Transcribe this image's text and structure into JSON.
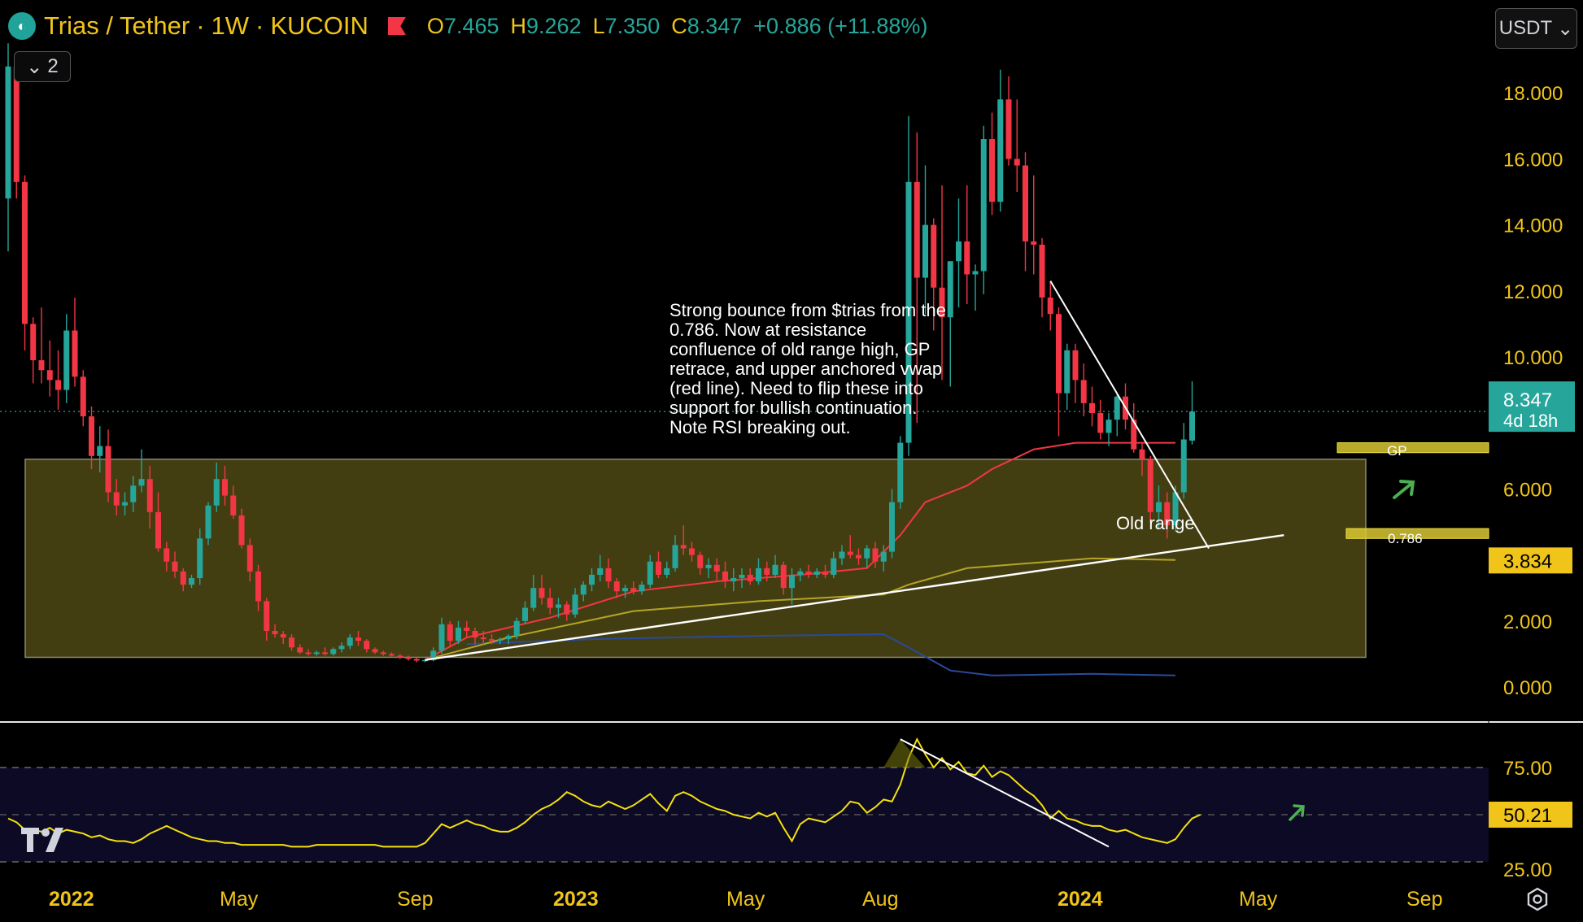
{
  "header": {
    "pair": "Trias / Tether",
    "sep1": "·",
    "interval": "1W",
    "sep2": "·",
    "exchange": "KUCOIN",
    "o_label": "O",
    "o_value": "7.465",
    "h_label": "H",
    "h_value": "9.262",
    "l_label": "L",
    "l_value": "7.350",
    "c_label": "C",
    "c_value": "8.347",
    "change": "+0.886 (+11.88%)"
  },
  "indicator_toggle": "2",
  "currency_select": "USDT",
  "annotation": "Strong bounce from $trias from the\n0.786. Now at resistance\nconfluence of old range high, GP\nretrace, and upper anchored vwap\n(red line). Need to flip these into\nsupport for bullish continuation.\nNote RSI breaking out.",
  "colors": {
    "up": "#26a69a",
    "down": "#f23645",
    "accent": "#f0c419",
    "range_fill": "#4a4514",
    "vwap_upper": "#f23645",
    "vwap_mid": "#b5a526",
    "vwap_lower": "#2a4a9a",
    "rsi_line": "#f5e10d",
    "trendline": "#ffffff",
    "arrow": "#4caf50"
  },
  "chart_data": [
    {
      "type": "candlestick",
      "title": "Trias / Tether · 1W · KUCOIN",
      "ylim": [
        0,
        19.5
      ],
      "y_ticks": [
        "18.000",
        "16.000",
        "14.000",
        "12.000",
        "10.000",
        "8.347",
        "6.000",
        "3.834",
        "2.000",
        "0.000"
      ],
      "price_tag": {
        "value": "8.347",
        "countdown": "4d 18h"
      },
      "level_tag": "3.834",
      "x_ticks": [
        "2022",
        "May",
        "Sep",
        "2023",
        "May",
        "Aug",
        "2024",
        "May",
        "Sep"
      ],
      "annotations": {
        "old_range": "Old range",
        "gp": "GP",
        "fib": "0.786"
      },
      "ohlc": [
        [
          14.8,
          19.5,
          13.2,
          18.8
        ],
        [
          18.8,
          18.9,
          14.8,
          15.3
        ],
        [
          15.3,
          15.5,
          10.2,
          11.0
        ],
        [
          11.0,
          11.2,
          9.2,
          9.9
        ],
        [
          9.9,
          11.5,
          9.2,
          9.6
        ],
        [
          9.6,
          10.5,
          8.8,
          9.3
        ],
        [
          9.3,
          10.2,
          8.4,
          9.0
        ],
        [
          9.0,
          11.3,
          8.6,
          10.8
        ],
        [
          10.8,
          11.8,
          9.1,
          9.4
        ],
        [
          9.4,
          9.6,
          7.9,
          8.2
        ],
        [
          8.2,
          8.5,
          6.6,
          7.0
        ],
        [
          7.0,
          7.9,
          6.5,
          7.3
        ],
        [
          7.3,
          7.8,
          5.6,
          5.9
        ],
        [
          5.9,
          6.3,
          5.2,
          5.5
        ],
        [
          5.5,
          5.9,
          5.2,
          5.6
        ],
        [
          5.6,
          6.4,
          5.3,
          6.1
        ],
        [
          6.1,
          7.2,
          5.9,
          6.3
        ],
        [
          6.3,
          6.7,
          4.8,
          5.3
        ],
        [
          5.3,
          5.9,
          4.1,
          4.2
        ],
        [
          4.2,
          4.4,
          3.5,
          3.8
        ],
        [
          3.8,
          4.1,
          3.3,
          3.5
        ],
        [
          3.5,
          3.6,
          2.9,
          3.1
        ],
        [
          3.1,
          3.4,
          3.0,
          3.3
        ],
        [
          3.3,
          4.8,
          3.1,
          4.5
        ],
        [
          4.5,
          5.6,
          4.3,
          5.5
        ],
        [
          5.5,
          6.8,
          5.3,
          6.3
        ],
        [
          6.3,
          6.7,
          5.5,
          5.8
        ],
        [
          5.8,
          6.1,
          5.1,
          5.2
        ],
        [
          5.2,
          5.4,
          4.2,
          4.3
        ],
        [
          4.3,
          4.5,
          3.2,
          3.5
        ],
        [
          3.5,
          3.7,
          2.3,
          2.6
        ],
        [
          2.6,
          2.7,
          1.4,
          1.7
        ],
        [
          1.7,
          1.9,
          1.5,
          1.6
        ],
        [
          1.6,
          1.7,
          1.3,
          1.5
        ],
        [
          1.5,
          1.6,
          1.1,
          1.2
        ],
        [
          1.2,
          1.3,
          1.0,
          1.05
        ],
        [
          1.05,
          1.15,
          0.95,
          1.0
        ],
        [
          1.0,
          1.1,
          0.95,
          1.05
        ],
        [
          1.05,
          1.2,
          0.95,
          1.0
        ],
        [
          1.0,
          1.2,
          0.95,
          1.15
        ],
        [
          1.15,
          1.35,
          1.05,
          1.25
        ],
        [
          1.25,
          1.6,
          1.15,
          1.5
        ],
        [
          1.5,
          1.7,
          1.25,
          1.4
        ],
        [
          1.4,
          1.45,
          1.05,
          1.15
        ],
        [
          1.15,
          1.2,
          1.0,
          1.05
        ],
        [
          1.05,
          1.1,
          0.95,
          1.0
        ],
        [
          1.0,
          1.05,
          0.9,
          0.95
        ],
        [
          0.95,
          1.0,
          0.85,
          0.9
        ],
        [
          0.9,
          0.95,
          0.8,
          0.85
        ],
        [
          0.85,
          0.9,
          0.75,
          0.8
        ],
        [
          0.8,
          0.85,
          0.75,
          0.82
        ],
        [
          0.82,
          1.2,
          0.78,
          1.1
        ],
        [
          1.1,
          2.1,
          1.0,
          1.9
        ],
        [
          1.9,
          2.0,
          1.2,
          1.4
        ],
        [
          1.4,
          2.0,
          1.3,
          1.8
        ],
        [
          1.8,
          2.0,
          1.5,
          1.7
        ],
        [
          1.7,
          1.8,
          1.3,
          1.5
        ],
        [
          1.5,
          1.7,
          1.3,
          1.45
        ],
        [
          1.45,
          1.6,
          1.3,
          1.4
        ],
        [
          1.4,
          1.5,
          1.3,
          1.45
        ],
        [
          1.45,
          1.6,
          1.3,
          1.55
        ],
        [
          1.55,
          2.1,
          1.45,
          2.0
        ],
        [
          2.0,
          2.6,
          1.9,
          2.4
        ],
        [
          2.4,
          3.4,
          2.3,
          3.0
        ],
        [
          3.0,
          3.4,
          2.5,
          2.7
        ],
        [
          2.7,
          3.0,
          2.2,
          2.4
        ],
        [
          2.4,
          2.7,
          2.1,
          2.5
        ],
        [
          2.5,
          2.6,
          2.0,
          2.2
        ],
        [
          2.2,
          3.0,
          2.1,
          2.8
        ],
        [
          2.8,
          3.2,
          2.6,
          3.1
        ],
        [
          3.1,
          3.6,
          2.9,
          3.4
        ],
        [
          3.4,
          4.0,
          3.2,
          3.6
        ],
        [
          3.6,
          3.9,
          3.0,
          3.2
        ],
        [
          3.2,
          3.3,
          2.7,
          2.9
        ],
        [
          2.9,
          3.1,
          2.7,
          3.0
        ],
        [
          3.0,
          3.2,
          2.8,
          2.9
        ],
        [
          2.9,
          3.2,
          2.8,
          3.1
        ],
        [
          3.1,
          4.0,
          3.0,
          3.8
        ],
        [
          3.8,
          4.1,
          3.3,
          3.4
        ],
        [
          3.4,
          3.8,
          3.3,
          3.6
        ],
        [
          3.6,
          4.6,
          3.5,
          4.3
        ],
        [
          4.3,
          4.9,
          4.0,
          4.2
        ],
        [
          4.2,
          4.4,
          3.8,
          4.0
        ],
        [
          4.0,
          4.1,
          3.4,
          3.6
        ],
        [
          3.6,
          3.9,
          3.3,
          3.7
        ],
        [
          3.7,
          3.9,
          3.2,
          3.5
        ],
        [
          3.5,
          3.8,
          3.0,
          3.2
        ],
        [
          3.2,
          3.6,
          2.9,
          3.3
        ],
        [
          3.3,
          3.6,
          3.0,
          3.4
        ],
        [
          3.4,
          3.6,
          3.1,
          3.2
        ],
        [
          3.2,
          3.9,
          3.1,
          3.6
        ],
        [
          3.6,
          3.8,
          3.2,
          3.4
        ],
        [
          3.4,
          4.0,
          3.3,
          3.7
        ],
        [
          3.7,
          3.8,
          2.8,
          3.0
        ],
        [
          3.0,
          3.6,
          2.5,
          3.4
        ],
        [
          3.4,
          3.6,
          3.2,
          3.5
        ],
        [
          3.5,
          3.7,
          3.3,
          3.4
        ],
        [
          3.4,
          3.6,
          3.3,
          3.5
        ],
        [
          3.5,
          3.7,
          3.3,
          3.4
        ],
        [
          3.4,
          4.1,
          3.3,
          3.9
        ],
        [
          3.9,
          4.3,
          3.7,
          4.1
        ],
        [
          4.1,
          4.6,
          3.9,
          4.0
        ],
        [
          4.0,
          4.2,
          3.7,
          3.9
        ],
        [
          3.9,
          4.3,
          3.6,
          4.2
        ],
        [
          4.2,
          4.4,
          3.6,
          3.8
        ],
        [
          3.8,
          4.3,
          3.5,
          4.1
        ],
        [
          4.1,
          6.0,
          3.9,
          5.6
        ],
        [
          5.6,
          7.6,
          5.4,
          7.4
        ],
        [
          7.4,
          17.3,
          7.0,
          15.3
        ],
        [
          15.3,
          16.8,
          8.0,
          12.4
        ],
        [
          12.4,
          15.8,
          11.3,
          14.0
        ],
        [
          14.0,
          14.2,
          10.8,
          12.1
        ],
        [
          12.1,
          15.2,
          9.3,
          11.2
        ],
        [
          11.2,
          12.8,
          9.1,
          12.9
        ],
        [
          12.9,
          14.8,
          11.5,
          13.5
        ],
        [
          13.5,
          15.2,
          11.6,
          12.5
        ],
        [
          12.5,
          12.8,
          11.4,
          12.6
        ],
        [
          12.6,
          17.0,
          11.9,
          16.6
        ],
        [
          16.6,
          17.4,
          14.3,
          14.7
        ],
        [
          14.7,
          18.7,
          14.4,
          17.8
        ],
        [
          17.8,
          18.5,
          15.8,
          16.0
        ],
        [
          16.0,
          17.8,
          15.0,
          15.8
        ],
        [
          15.8,
          16.2,
          12.6,
          13.5
        ],
        [
          13.5,
          15.5,
          12.5,
          13.4
        ],
        [
          13.4,
          13.6,
          11.2,
          11.8
        ],
        [
          11.8,
          12.3,
          10.8,
          11.3
        ],
        [
          11.3,
          11.5,
          7.6,
          8.9
        ],
        [
          8.9,
          10.4,
          8.4,
          10.2
        ],
        [
          10.2,
          10.4,
          8.6,
          9.3
        ],
        [
          9.3,
          9.8,
          8.2,
          8.6
        ],
        [
          8.6,
          9.1,
          7.9,
          8.3
        ],
        [
          8.3,
          8.7,
          7.5,
          7.7
        ],
        [
          7.7,
          8.3,
          7.3,
          8.1
        ],
        [
          8.1,
          8.9,
          7.6,
          8.8
        ],
        [
          8.8,
          9.2,
          7.8,
          8.1
        ],
        [
          8.1,
          8.6,
          7.1,
          7.2
        ],
        [
          7.2,
          7.4,
          6.4,
          6.9
        ],
        [
          6.9,
          7.0,
          5.0,
          5.3
        ],
        [
          5.3,
          6.1,
          4.8,
          5.6
        ],
        [
          5.6,
          5.9,
          4.5,
          4.9
        ],
        [
          4.9,
          6.1,
          4.7,
          5.9
        ],
        [
          5.9,
          8.0,
          5.7,
          7.5
        ],
        [
          7.465,
          9.262,
          7.35,
          8.347
        ]
      ],
      "overlays": {
        "old_range_box": {
          "top": 6.9,
          "bottom": 0.9
        },
        "gp_zone": [
          7.1,
          7.4
        ],
        "fib_0_786_zone": [
          4.5,
          4.8
        ],
        "vwap_upper": [
          [
            50,
            0.82
          ],
          [
            55,
            1.5
          ],
          [
            65,
            2.1
          ],
          [
            75,
            2.9
          ],
          [
            85,
            3.2
          ],
          [
            95,
            3.4
          ],
          [
            103,
            3.6
          ],
          [
            107,
            4.6
          ],
          [
            110,
            5.6
          ],
          [
            115,
            6.1
          ],
          [
            118,
            6.6
          ],
          [
            123,
            7.2
          ],
          [
            128,
            7.4
          ],
          [
            140,
            7.4
          ]
        ],
        "vwap_mid": [
          [
            50,
            0.82
          ],
          [
            60,
            1.5
          ],
          [
            75,
            2.3
          ],
          [
            90,
            2.6
          ],
          [
            105,
            2.8
          ],
          [
            108,
            3.1
          ],
          [
            115,
            3.6
          ],
          [
            125,
            3.8
          ],
          [
            130,
            3.9
          ],
          [
            140,
            3.85
          ]
        ],
        "vwap_lower": [
          [
            55,
            1.3
          ],
          [
            70,
            1.45
          ],
          [
            90,
            1.55
          ],
          [
            105,
            1.6
          ],
          [
            108,
            1.2
          ],
          [
            113,
            0.5
          ],
          [
            118,
            0.35
          ],
          [
            130,
            0.4
          ],
          [
            140,
            0.35
          ]
        ],
        "support_trendline": [
          [
            50,
            0.82
          ],
          [
            153,
            4.6
          ]
        ],
        "resistance_trendline": [
          [
            125,
            12.3
          ],
          [
            144,
            4.2
          ]
        ]
      }
    },
    {
      "type": "line",
      "title": "RSI",
      "ylim": [
        20,
        95
      ],
      "y_ticks": [
        "75.00",
        "50.21",
        "25.00"
      ],
      "current_value": "50.21",
      "values": [
        48,
        46,
        42,
        42,
        41,
        43,
        40,
        42,
        41,
        40,
        38,
        39,
        37,
        36,
        36,
        35,
        37,
        40,
        42,
        44,
        42,
        40,
        38,
        37,
        36,
        36,
        35,
        35,
        34,
        34,
        34,
        34,
        34,
        34,
        33,
        33,
        33,
        34,
        34,
        34,
        34,
        34,
        34,
        34,
        34,
        33,
        33,
        33,
        33,
        33,
        35,
        40,
        45,
        43,
        45,
        47,
        45,
        44,
        42,
        41,
        41,
        43,
        46,
        50,
        53,
        55,
        58,
        62,
        60,
        57,
        55,
        54,
        57,
        55,
        53,
        55,
        58,
        61,
        56,
        52,
        60,
        62,
        60,
        57,
        55,
        53,
        52,
        50,
        49,
        48,
        51,
        49,
        51,
        43,
        36,
        45,
        48,
        47,
        46,
        49,
        52,
        57,
        56,
        51,
        54,
        58,
        57,
        66,
        80,
        90,
        82,
        75,
        80,
        74,
        78,
        72,
        71,
        76,
        70,
        73,
        71,
        67,
        63,
        60,
        55,
        48,
        52,
        48,
        47,
        45,
        44,
        44,
        42,
        41,
        42,
        40,
        38,
        37,
        36,
        35,
        37,
        43,
        48,
        50
      ],
      "trendline": [
        [
          107,
          90
        ],
        [
          132,
          33
        ]
      ]
    }
  ]
}
